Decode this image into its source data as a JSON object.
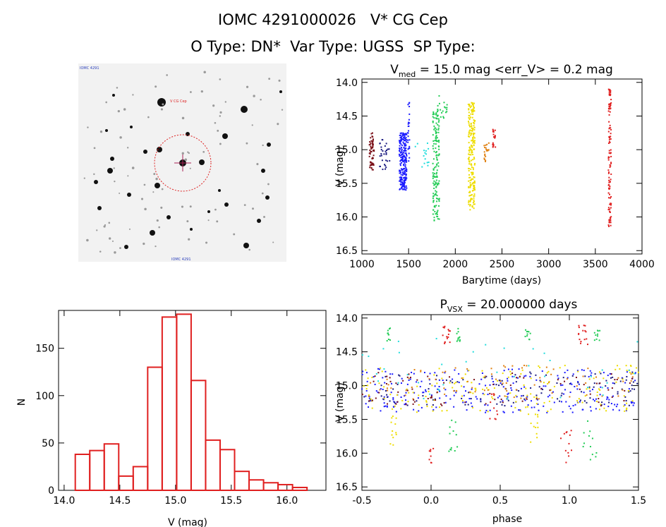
{
  "header": {
    "line1": "IOMC 4291000026   V* CG Cep",
    "line2": "O Type: DN*  Var Type: UGSS  SP Type:"
  },
  "colors": {
    "hist": "#e02020",
    "red": "#e02020",
    "blue": "#1a1aff",
    "navy": "#1a1a80",
    "green": "#22cc55",
    "yellow": "#eedd00",
    "orange": "#e08010",
    "cyan": "#22dddd",
    "maroon": "#7a1018",
    "stamp_circle": "#dd2222"
  },
  "stamp": {
    "name": "finder-chart",
    "caption_tl": "IOMC 4291",
    "caption_bottom": "IOMC 4291",
    "label_star": "V CG Cep"
  },
  "chart_data": [
    {
      "id": "lightcurve",
      "type": "scatter",
      "title_prefix": "V",
      "title_sub": "med",
      "title_rest": " = 15.0 mag <err_V> = 0.2 mag",
      "xlabel": "Barytime (days)",
      "ylabel": "V (mag)",
      "xlim": [
        1000,
        4000
      ],
      "ylim": [
        16.55,
        13.95
      ],
      "xticks": [
        "1000",
        "1500",
        "2000",
        "2500",
        "3000",
        "3500",
        "4000"
      ],
      "xtick_vals": [
        1000,
        1500,
        2000,
        2500,
        3000,
        3500,
        4000
      ],
      "yticks": [
        "14.0",
        "14.5",
        "15.0",
        "15.5",
        "16.0",
        "16.5"
      ],
      "ytick_vals": [
        14.0,
        14.5,
        15.0,
        15.5,
        16.0,
        16.5
      ],
      "groups": [
        {
          "color": "maroon",
          "x": [
            1080,
            1130
          ],
          "y": [
            14.75,
            15.3
          ],
          "n": 60
        },
        {
          "color": "navy",
          "x": [
            1180,
            1300
          ],
          "y": [
            14.85,
            15.3
          ],
          "n": 30
        },
        {
          "color": "blue",
          "x": [
            1400,
            1480
          ],
          "y": [
            14.75,
            15.6
          ],
          "n": 220
        },
        {
          "color": "blue",
          "x": [
            1490,
            1510
          ],
          "y": [
            14.25,
            15.2
          ],
          "n": 25
        },
        {
          "color": "cyan",
          "x": [
            1560,
            1720
          ],
          "y": [
            14.9,
            15.3
          ],
          "n": 15
        },
        {
          "color": "green",
          "x": [
            1760,
            1830
          ],
          "y": [
            14.4,
            16.1
          ],
          "n": 150
        },
        {
          "color": "green",
          "x": [
            1800,
            1920
          ],
          "y": [
            14.2,
            14.6
          ],
          "n": 20
        },
        {
          "color": "yellow",
          "x": [
            2140,
            2210
          ],
          "y": [
            14.3,
            15.9
          ],
          "n": 220
        },
        {
          "color": "orange",
          "x": [
            2300,
            2360
          ],
          "y": [
            14.9,
            15.2
          ],
          "n": 20
        },
        {
          "color": "red",
          "x": [
            2400,
            2430
          ],
          "y": [
            14.7,
            15.0
          ],
          "n": 20
        },
        {
          "color": "red",
          "x": [
            3640,
            3670
          ],
          "y": [
            14.1,
            16.15
          ],
          "n": 110
        }
      ]
    },
    {
      "id": "histogram",
      "type": "bar",
      "xlabel": "V (mag)",
      "ylabel": "N",
      "xlim": [
        13.95,
        16.35
      ],
      "ylim": [
        0,
        190
      ],
      "xticks": [
        "14.0",
        "14.5",
        "15.0",
        "15.5",
        "16.0"
      ],
      "xtick_vals": [
        14.0,
        14.5,
        15.0,
        15.5,
        16.0
      ],
      "yticks": [
        "0",
        "50",
        "100",
        "150"
      ],
      "ytick_vals": [
        0,
        50,
        100,
        150
      ],
      "bin_start": 14.1,
      "bin_width": 0.13,
      "values": [
        38,
        42,
        49,
        15,
        25,
        130,
        183,
        186,
        116,
        53,
        43,
        20,
        11,
        8,
        6,
        3
      ]
    },
    {
      "id": "phased",
      "type": "scatter",
      "title_prefix": "P",
      "title_sub": "VSX",
      "title_rest": " = 20.000000 days",
      "xlabel": "phase",
      "ylabel": "V (mag)",
      "xlim": [
        -0.5,
        1.5
      ],
      "ylim": [
        16.55,
        13.95
      ],
      "xticks": [
        "-0.5",
        "0.0",
        "0.5",
        "1.0",
        "1.5"
      ],
      "xtick_vals": [
        -0.5,
        0.0,
        0.5,
        1.0,
        1.5
      ],
      "yticks": [
        "14.0",
        "14.5",
        "15.0",
        "15.5",
        "16.0",
        "16.5"
      ],
      "ytick_vals": [
        14.0,
        14.5,
        15.0,
        15.5,
        16.0,
        16.5
      ],
      "groups": [
        {
          "color": "blue",
          "x": [
            -0.5,
            1.5
          ],
          "y": [
            14.75,
            15.4
          ],
          "n": 260
        },
        {
          "color": "navy",
          "x": [
            -0.5,
            1.5
          ],
          "y": [
            14.8,
            15.3
          ],
          "n": 120
        },
        {
          "color": "yellow",
          "x": [
            -0.5,
            1.5
          ],
          "y": [
            14.7,
            15.4
          ],
          "n": 160
        },
        {
          "color": "orange",
          "x": [
            -0.5,
            1.5
          ],
          "y": [
            14.7,
            15.2
          ],
          "n": 80
        },
        {
          "color": "maroon",
          "x": [
            -0.5,
            1.5
          ],
          "y": [
            14.8,
            15.3
          ],
          "n": 80
        },
        {
          "color": "green",
          "x": [
            -0.32,
            -0.28
          ],
          "y": [
            14.15,
            14.35
          ],
          "n": 10
        },
        {
          "color": "green",
          "x": [
            0.18,
            0.22
          ],
          "y": [
            14.15,
            14.35
          ],
          "n": 10
        },
        {
          "color": "green",
          "x": [
            0.68,
            0.72
          ],
          "y": [
            14.15,
            14.35
          ],
          "n": 10
        },
        {
          "color": "green",
          "x": [
            1.18,
            1.22
          ],
          "y": [
            14.15,
            14.35
          ],
          "n": 10
        },
        {
          "color": "green",
          "x": [
            0.12,
            0.2
          ],
          "y": [
            15.5,
            16.0
          ],
          "n": 12
        },
        {
          "color": "green",
          "x": [
            1.1,
            1.2
          ],
          "y": [
            15.5,
            16.1
          ],
          "n": 12
        },
        {
          "color": "red",
          "x": [
            0.08,
            0.14
          ],
          "y": [
            14.1,
            14.4
          ],
          "n": 15
        },
        {
          "color": "red",
          "x": [
            1.06,
            1.14
          ],
          "y": [
            14.1,
            14.4
          ],
          "n": 15
        },
        {
          "color": "red",
          "x": [
            -0.02,
            0.02
          ],
          "y": [
            15.9,
            16.15
          ],
          "n": 8
        },
        {
          "color": "red",
          "x": [
            0.92,
            1.02
          ],
          "y": [
            15.6,
            16.15
          ],
          "n": 12
        },
        {
          "color": "red",
          "x": [
            0.42,
            0.48
          ],
          "y": [
            15.1,
            15.5
          ],
          "n": 10
        },
        {
          "color": "cyan",
          "x": [
            -0.5,
            1.5
          ],
          "y": [
            14.3,
            15.2
          ],
          "n": 40
        },
        {
          "color": "yellow",
          "x": [
            -0.3,
            -0.25
          ],
          "y": [
            15.4,
            15.9
          ],
          "n": 12
        },
        {
          "color": "yellow",
          "x": [
            0.7,
            0.78
          ],
          "y": [
            15.4,
            15.9
          ],
          "n": 12
        }
      ]
    }
  ]
}
